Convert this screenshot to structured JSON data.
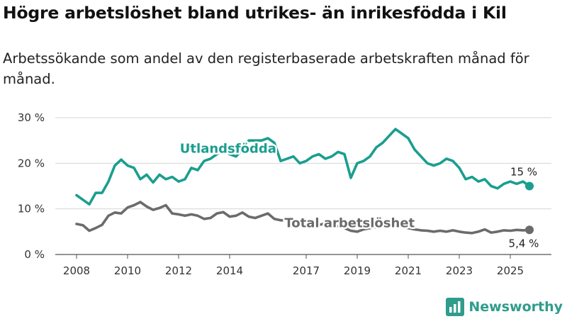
{
  "title": "Högre arbetslöshet bland utrikes- än inrikesfödda i Kil",
  "subtitle": "Arbetssökande som andel av den registerbaserade arbetskraften månad för månad.",
  "brand": {
    "name": "Newsworthy",
    "color": "#2f9c8c"
  },
  "chart_data": {
    "type": "line",
    "title": "Högre arbetslöshet bland utrikes- än inrikesfödda i Kil",
    "xlabel": "",
    "ylabel": "",
    "ylim": [
      0,
      30
    ],
    "xlim": [
      2008.0,
      2025.75
    ],
    "grid": true,
    "y_ticks": [
      0,
      10,
      20,
      30
    ],
    "y_tick_labels": [
      "0 %",
      "10 %",
      "20 %",
      "30 %"
    ],
    "x_ticks": [
      2008,
      2010,
      2012,
      2014,
      2017,
      2019,
      2021,
      2023,
      2025
    ],
    "x_tick_labels": [
      "2008",
      "2010",
      "2012",
      "2014",
      "2017",
      "2019",
      "2021",
      "2023",
      "2025"
    ],
    "series": [
      {
        "name": "Utlandsfödda",
        "color": "#1a9e8f",
        "label_position": [
          2012.05,
          22.3
        ],
        "end_label": "15 %",
        "x": [
          2008.0,
          2008.25,
          2008.5,
          2008.75,
          2009.0,
          2009.25,
          2009.5,
          2009.75,
          2010.0,
          2010.25,
          2010.5,
          2010.75,
          2011.0,
          2011.25,
          2011.5,
          2011.75,
          2012.0,
          2012.25,
          2012.5,
          2012.75,
          2013.0,
          2013.25,
          2013.5,
          2013.75,
          2014.0,
          2014.25,
          2014.5,
          2014.75,
          2015.0,
          2015.25,
          2015.5,
          2015.75,
          2016.0,
          2016.25,
          2016.5,
          2016.75,
          2017.0,
          2017.25,
          2017.5,
          2017.75,
          2018.0,
          2018.25,
          2018.5,
          2018.75,
          2019.0,
          2019.25,
          2019.5,
          2019.75,
          2020.0,
          2020.25,
          2020.5,
          2020.75,
          2021.0,
          2021.25,
          2021.5,
          2021.75,
          2022.0,
          2022.25,
          2022.5,
          2022.75,
          2023.0,
          2023.25,
          2023.5,
          2023.75,
          2024.0,
          2024.25,
          2024.5,
          2024.75,
          2025.0,
          2025.25,
          2025.5,
          2025.75
        ],
        "values": [
          13.0,
          12.0,
          11.0,
          13.5,
          13.5,
          16.0,
          19.5,
          20.8,
          19.5,
          19.0,
          16.5,
          17.5,
          15.8,
          17.5,
          16.5,
          17.0,
          16.0,
          16.5,
          19.0,
          18.5,
          20.5,
          21.0,
          22.0,
          23.0,
          22.0,
          21.5,
          23.0,
          25.0,
          25.0,
          25.0,
          25.5,
          24.5,
          20.5,
          21.0,
          21.5,
          20.0,
          20.5,
          21.5,
          22.0,
          21.0,
          21.5,
          22.5,
          22.0,
          16.8,
          20.0,
          20.5,
          21.5,
          23.5,
          24.5,
          26.0,
          27.5,
          26.5,
          25.5,
          23.0,
          21.5,
          20.0,
          19.5,
          20.0,
          21.0,
          20.5,
          19.0,
          16.5,
          17.0,
          16.0,
          16.5,
          15.0,
          14.5,
          15.5,
          16.0,
          15.5,
          16.0,
          15.0
        ]
      },
      {
        "name": "Total arbetslöshet",
        "color": "#6b6b6b",
        "label_position": [
          2016.15,
          6.0
        ],
        "end_label": "5,4 %",
        "x": [
          2008.0,
          2008.25,
          2008.5,
          2008.75,
          2009.0,
          2009.25,
          2009.5,
          2009.75,
          2010.0,
          2010.25,
          2010.5,
          2010.75,
          2011.0,
          2011.25,
          2011.5,
          2011.75,
          2012.0,
          2012.25,
          2012.5,
          2012.75,
          2013.0,
          2013.25,
          2013.5,
          2013.75,
          2014.0,
          2014.25,
          2014.5,
          2014.75,
          2015.0,
          2015.25,
          2015.5,
          2015.75,
          2016.0,
          2016.25,
          2016.5,
          2016.75,
          2017.0,
          2017.25,
          2017.5,
          2017.75,
          2018.0,
          2018.25,
          2018.5,
          2018.75,
          2019.0,
          2019.25,
          2019.5,
          2019.75,
          2020.0,
          2020.25,
          2020.5,
          2020.75,
          2021.0,
          2021.25,
          2021.5,
          2021.75,
          2022.0,
          2022.25,
          2022.5,
          2022.75,
          2023.0,
          2023.25,
          2023.5,
          2023.75,
          2024.0,
          2024.25,
          2024.5,
          2024.75,
          2025.0,
          2025.25,
          2025.5,
          2025.75
        ],
        "values": [
          6.7,
          6.4,
          5.2,
          5.8,
          6.5,
          8.5,
          9.2,
          9.0,
          10.3,
          10.8,
          11.5,
          10.5,
          9.8,
          10.2,
          10.8,
          9.0,
          8.8,
          8.5,
          8.8,
          8.5,
          7.8,
          8.0,
          9.0,
          9.3,
          8.3,
          8.5,
          9.2,
          8.3,
          8.0,
          8.5,
          9.0,
          7.8,
          7.5,
          7.6,
          7.5,
          6.8,
          6.2,
          6.0,
          6.5,
          6.8,
          6.5,
          6.2,
          5.8,
          5.2,
          5.0,
          5.5,
          5.8,
          6.0,
          6.5,
          6.8,
          6.4,
          6.0,
          5.8,
          5.5,
          5.3,
          5.2,
          5.0,
          5.2,
          5.0,
          5.3,
          5.0,
          4.8,
          4.7,
          5.0,
          5.5,
          4.8,
          5.0,
          5.3,
          5.2,
          5.4,
          5.3,
          5.4
        ]
      }
    ]
  }
}
